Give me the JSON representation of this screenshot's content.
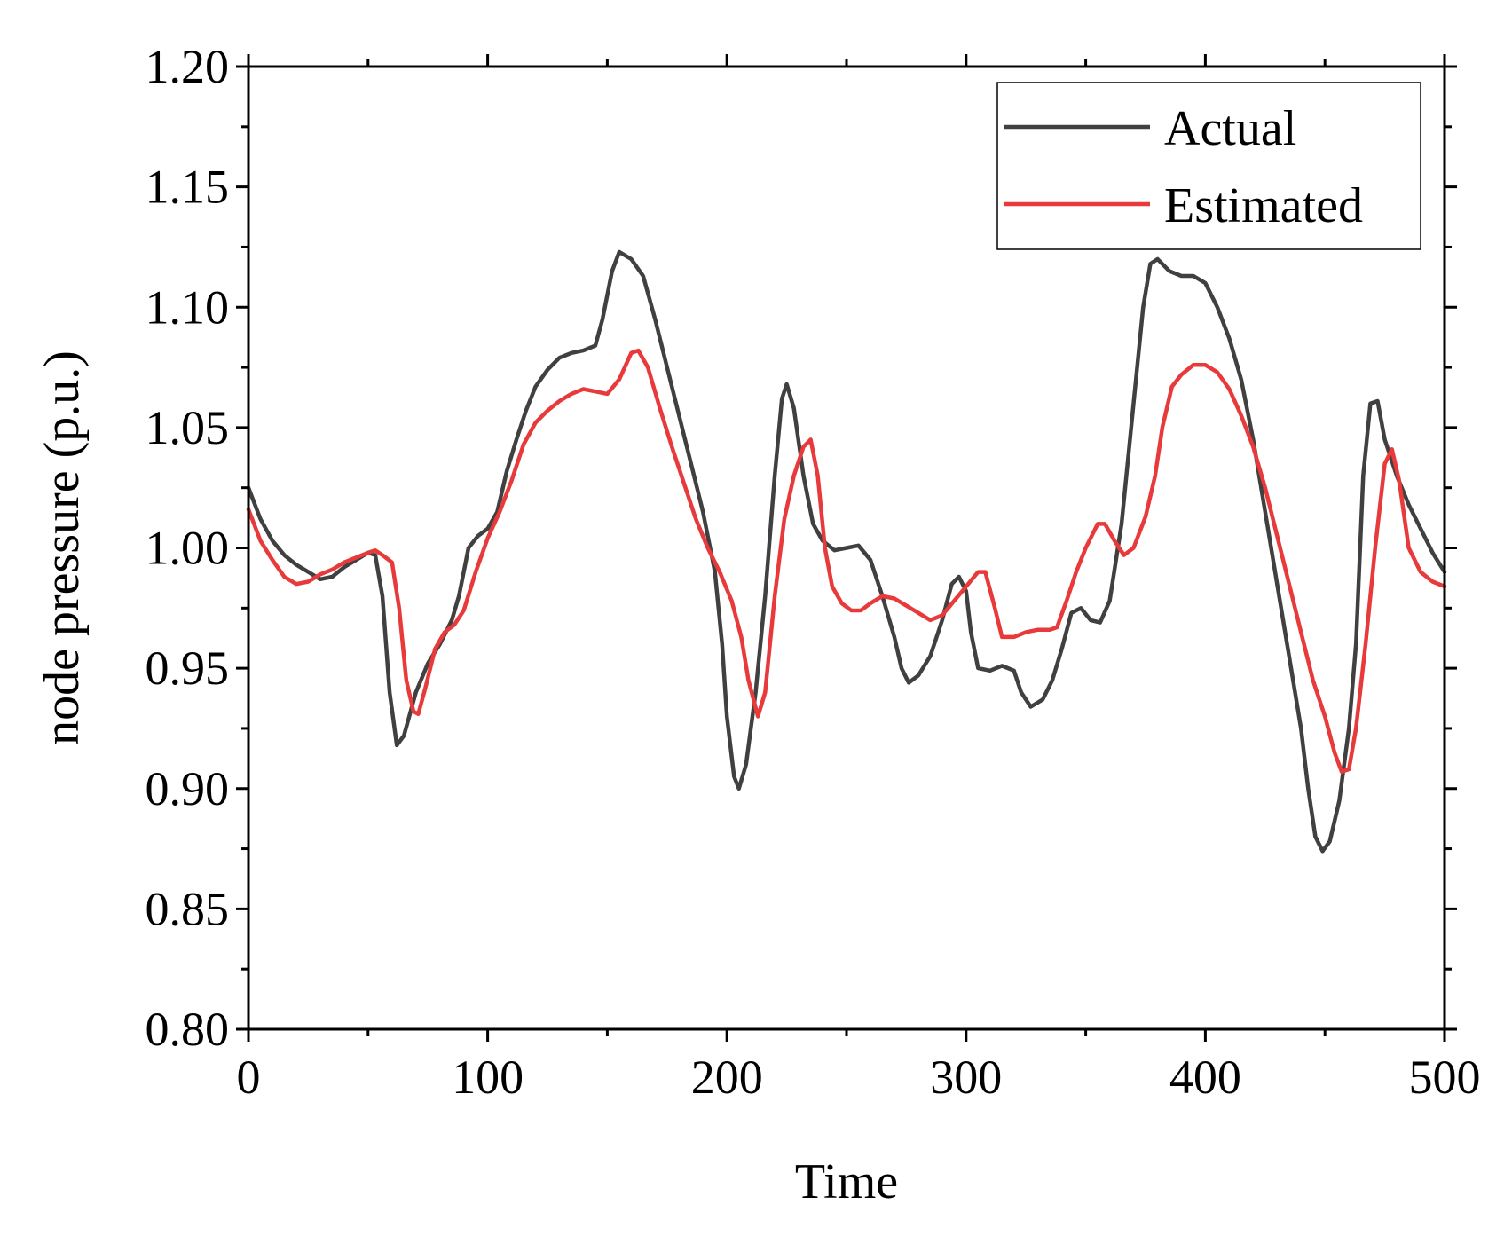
{
  "chart_data": {
    "type": "line",
    "title": "",
    "xlabel": "Time",
    "ylabel": "node pressure (p.u.)",
    "xlim": [
      0,
      500
    ],
    "ylim": [
      0.8,
      1.2
    ],
    "grid": false,
    "legend_position": "top-right",
    "x_ticks": [
      0,
      100,
      200,
      300,
      400,
      500
    ],
    "x_tick_labels": [
      "0",
      "100",
      "200",
      "300",
      "400",
      "500"
    ],
    "y_ticks": [
      0.8,
      0.85,
      0.9,
      0.95,
      1.0,
      1.05,
      1.1,
      1.15,
      1.2
    ],
    "y_tick_labels": [
      "0.80",
      "0.85",
      "0.90",
      "0.95",
      "1.00",
      "1.05",
      "1.10",
      "1.15",
      "1.20"
    ],
    "series": [
      {
        "name": "Actual",
        "color": "#404040",
        "points": [
          [
            0,
            1.025
          ],
          [
            5,
            1.012
          ],
          [
            10,
            1.003
          ],
          [
            15,
            0.997
          ],
          [
            20,
            0.993
          ],
          [
            25,
            0.99
          ],
          [
            30,
            0.987
          ],
          [
            35,
            0.988
          ],
          [
            40,
            0.992
          ],
          [
            45,
            0.995
          ],
          [
            50,
            0.998
          ],
          [
            53,
            0.997
          ],
          [
            56,
            0.98
          ],
          [
            59,
            0.94
          ],
          [
            62,
            0.918
          ],
          [
            65,
            0.922
          ],
          [
            70,
            0.94
          ],
          [
            75,
            0.952
          ],
          [
            80,
            0.96
          ],
          [
            85,
            0.97
          ],
          [
            88,
            0.98
          ],
          [
            92,
            1.0
          ],
          [
            96,
            1.005
          ],
          [
            100,
            1.008
          ],
          [
            104,
            1.015
          ],
          [
            108,
            1.032
          ],
          [
            112,
            1.045
          ],
          [
            116,
            1.057
          ],
          [
            120,
            1.067
          ],
          [
            125,
            1.074
          ],
          [
            130,
            1.079
          ],
          [
            135,
            1.081
          ],
          [
            140,
            1.082
          ],
          [
            145,
            1.084
          ],
          [
            148,
            1.095
          ],
          [
            152,
            1.115
          ],
          [
            155,
            1.123
          ],
          [
            160,
            1.12
          ],
          [
            165,
            1.113
          ],
          [
            170,
            1.095
          ],
          [
            175,
            1.075
          ],
          [
            180,
            1.055
          ],
          [
            185,
            1.035
          ],
          [
            190,
            1.015
          ],
          [
            195,
            0.99
          ],
          [
            198,
            0.96
          ],
          [
            200,
            0.93
          ],
          [
            203,
            0.905
          ],
          [
            205,
            0.9
          ],
          [
            208,
            0.91
          ],
          [
            212,
            0.94
          ],
          [
            216,
            0.98
          ],
          [
            220,
            1.03
          ],
          [
            223,
            1.062
          ],
          [
            225,
            1.068
          ],
          [
            228,
            1.058
          ],
          [
            232,
            1.03
          ],
          [
            236,
            1.01
          ],
          [
            240,
            1.003
          ],
          [
            245,
            0.999
          ],
          [
            250,
            1.0
          ],
          [
            255,
            1.001
          ],
          [
            260,
            0.995
          ],
          [
            265,
            0.98
          ],
          [
            270,
            0.963
          ],
          [
            273,
            0.95
          ],
          [
            276,
            0.944
          ],
          [
            280,
            0.947
          ],
          [
            285,
            0.955
          ],
          [
            290,
            0.97
          ],
          [
            294,
            0.985
          ],
          [
            297,
            0.988
          ],
          [
            300,
            0.982
          ],
          [
            302,
            0.965
          ],
          [
            305,
            0.95
          ],
          [
            310,
            0.949
          ],
          [
            315,
            0.951
          ],
          [
            320,
            0.949
          ],
          [
            323,
            0.94
          ],
          [
            327,
            0.934
          ],
          [
            332,
            0.937
          ],
          [
            336,
            0.945
          ],
          [
            340,
            0.958
          ],
          [
            344,
            0.973
          ],
          [
            348,
            0.975
          ],
          [
            352,
            0.97
          ],
          [
            356,
            0.969
          ],
          [
            360,
            0.978
          ],
          [
            365,
            1.01
          ],
          [
            370,
            1.06
          ],
          [
            374,
            1.1
          ],
          [
            377,
            1.118
          ],
          [
            380,
            1.12
          ],
          [
            385,
            1.115
          ],
          [
            390,
            1.113
          ],
          [
            395,
            1.113
          ],
          [
            400,
            1.11
          ],
          [
            405,
            1.1
          ],
          [
            410,
            1.087
          ],
          [
            415,
            1.07
          ],
          [
            420,
            1.045
          ],
          [
            425,
            1.015
          ],
          [
            430,
            0.985
          ],
          [
            435,
            0.955
          ],
          [
            440,
            0.925
          ],
          [
            443,
            0.9
          ],
          [
            446,
            0.88
          ],
          [
            449,
            0.874
          ],
          [
            452,
            0.878
          ],
          [
            456,
            0.895
          ],
          [
            460,
            0.925
          ],
          [
            463,
            0.96
          ],
          [
            466,
            1.03
          ],
          [
            469,
            1.06
          ],
          [
            472,
            1.061
          ],
          [
            475,
            1.045
          ],
          [
            480,
            1.03
          ],
          [
            485,
            1.018
          ],
          [
            490,
            1.008
          ],
          [
            495,
            0.998
          ],
          [
            500,
            0.99
          ]
        ]
      },
      {
        "name": "Estimated",
        "color": "#e8393b",
        "points": [
          [
            0,
            1.016
          ],
          [
            5,
            1.003
          ],
          [
            10,
            0.995
          ],
          [
            15,
            0.988
          ],
          [
            20,
            0.985
          ],
          [
            25,
            0.986
          ],
          [
            30,
            0.989
          ],
          [
            35,
            0.991
          ],
          [
            40,
            0.994
          ],
          [
            45,
            0.996
          ],
          [
            50,
            0.998
          ],
          [
            53,
            0.999
          ],
          [
            56,
            0.997
          ],
          [
            60,
            0.994
          ],
          [
            63,
            0.975
          ],
          [
            66,
            0.945
          ],
          [
            69,
            0.932
          ],
          [
            71,
            0.931
          ],
          [
            74,
            0.942
          ],
          [
            78,
            0.958
          ],
          [
            82,
            0.965
          ],
          [
            86,
            0.968
          ],
          [
            90,
            0.974
          ],
          [
            95,
            0.99
          ],
          [
            100,
            1.004
          ],
          [
            105,
            1.015
          ],
          [
            110,
            1.028
          ],
          [
            115,
            1.043
          ],
          [
            120,
            1.052
          ],
          [
            125,
            1.057
          ],
          [
            130,
            1.061
          ],
          [
            135,
            1.064
          ],
          [
            140,
            1.066
          ],
          [
            145,
            1.065
          ],
          [
            150,
            1.064
          ],
          [
            155,
            1.07
          ],
          [
            160,
            1.081
          ],
          [
            163,
            1.082
          ],
          [
            167,
            1.075
          ],
          [
            172,
            1.058
          ],
          [
            177,
            1.042
          ],
          [
            182,
            1.027
          ],
          [
            187,
            1.012
          ],
          [
            192,
            1.0
          ],
          [
            197,
            0.99
          ],
          [
            202,
            0.978
          ],
          [
            206,
            0.963
          ],
          [
            209,
            0.945
          ],
          [
            213,
            0.93
          ],
          [
            216,
            0.94
          ],
          [
            220,
            0.98
          ],
          [
            224,
            1.012
          ],
          [
            228,
            1.03
          ],
          [
            232,
            1.042
          ],
          [
            235,
            1.045
          ],
          [
            238,
            1.03
          ],
          [
            241,
            1.0
          ],
          [
            244,
            0.984
          ],
          [
            248,
            0.977
          ],
          [
            252,
            0.974
          ],
          [
            256,
            0.974
          ],
          [
            260,
            0.977
          ],
          [
            265,
            0.98
          ],
          [
            270,
            0.979
          ],
          [
            275,
            0.976
          ],
          [
            280,
            0.973
          ],
          [
            285,
            0.97
          ],
          [
            290,
            0.972
          ],
          [
            295,
            0.978
          ],
          [
            300,
            0.984
          ],
          [
            305,
            0.99
          ],
          [
            308,
            0.99
          ],
          [
            312,
            0.975
          ],
          [
            315,
            0.963
          ],
          [
            320,
            0.963
          ],
          [
            325,
            0.965
          ],
          [
            330,
            0.966
          ],
          [
            335,
            0.966
          ],
          [
            338,
            0.967
          ],
          [
            342,
            0.978
          ],
          [
            346,
            0.99
          ],
          [
            350,
            1.0
          ],
          [
            355,
            1.01
          ],
          [
            358,
            1.01
          ],
          [
            362,
            1.003
          ],
          [
            366,
            0.997
          ],
          [
            370,
            1.0
          ],
          [
            375,
            1.013
          ],
          [
            379,
            1.03
          ],
          [
            382,
            1.05
          ],
          [
            386,
            1.067
          ],
          [
            390,
            1.072
          ],
          [
            395,
            1.076
          ],
          [
            400,
            1.076
          ],
          [
            405,
            1.073
          ],
          [
            410,
            1.066
          ],
          [
            415,
            1.055
          ],
          [
            420,
            1.042
          ],
          [
            425,
            1.025
          ],
          [
            430,
            1.005
          ],
          [
            435,
            0.985
          ],
          [
            440,
            0.965
          ],
          [
            445,
            0.945
          ],
          [
            450,
            0.93
          ],
          [
            454,
            0.915
          ],
          [
            457,
            0.907
          ],
          [
            460,
            0.908
          ],
          [
            463,
            0.925
          ],
          [
            467,
            0.96
          ],
          [
            471,
            1.0
          ],
          [
            475,
            1.035
          ],
          [
            478,
            1.041
          ],
          [
            481,
            1.028
          ],
          [
            485,
            1.0
          ],
          [
            490,
            0.99
          ],
          [
            495,
            0.986
          ],
          [
            500,
            0.984
          ]
        ]
      }
    ]
  }
}
